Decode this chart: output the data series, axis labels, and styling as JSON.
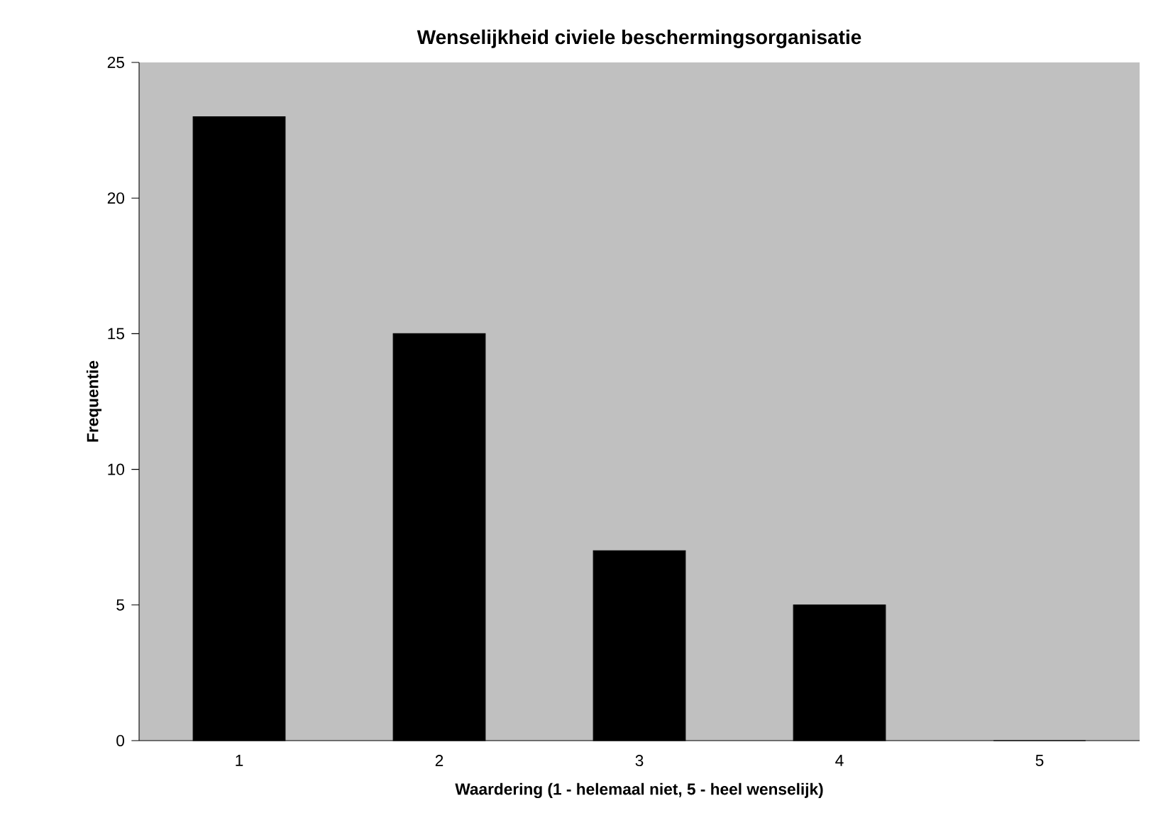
{
  "chart_data": {
    "type": "bar",
    "title": "Wenselijkheid civiele beschermingsorganisatie",
    "xlabel": "Waardering (1 - helemaal niet, 5 - heel wenselijk)",
    "ylabel": "Frequentie",
    "categories": [
      "1",
      "2",
      "3",
      "4",
      "5"
    ],
    "values": [
      23,
      15,
      7,
      5,
      0
    ],
    "color": "#000000",
    "ylim": [
      0,
      25
    ],
    "yticks": [
      0,
      5,
      10,
      15,
      20,
      25
    ],
    "grid": false
  }
}
